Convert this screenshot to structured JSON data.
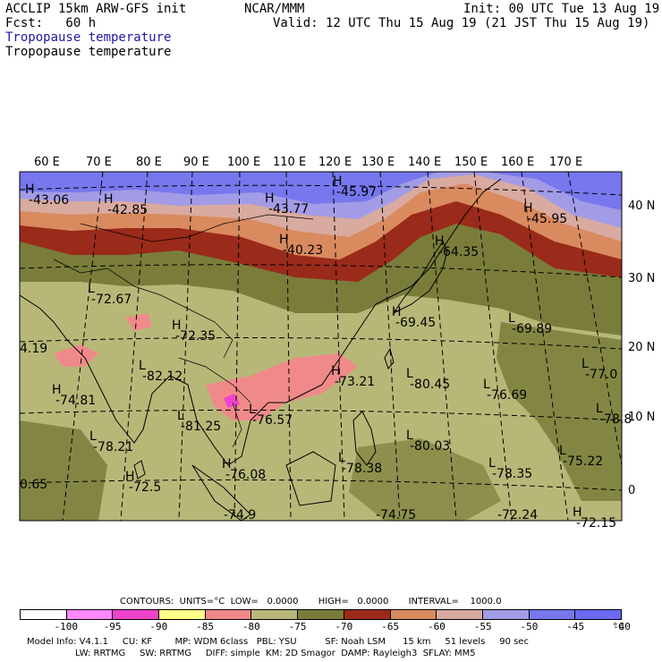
{
  "header": {
    "left1": "ACCLIP 15km ARW-GFS init",
    "left2": "Fcst:   60 h",
    "center1": "NCAR/MMM",
    "right1": "Init: 00 UTC Tue 13 Aug 19",
    "right2": "Valid: 12 UTC Thu 15 Aug 19 (21 JST Thu 15 Aug 19)",
    "field_label_blue": "Tropopause temperature",
    "field_label_black": "Tropopause temperature"
  },
  "map": {
    "lon_labels": [
      "60 E",
      "70 E",
      "80 E",
      "90 E",
      "100 E",
      "110 E",
      "120 E",
      "130 E",
      "140 E",
      "150 E",
      "160 E",
      "170 E"
    ],
    "lat_labels": [
      "40 N",
      "30 N",
      "20 N",
      "10 N",
      "0"
    ],
    "colors": {
      "c_blue": "#7777ee",
      "c_lav": "#a29be6",
      "c_pink": "#d8aaa0",
      "c_orange": "#d98a5e",
      "c_red": "#9a2a1a",
      "c_olive": "#7a7d3a",
      "c_khaki": "#b7b878",
      "c_salmon": "#f08a8a",
      "c_magenta": "#ee44cc"
    },
    "extrema": [
      {
        "m": "H",
        "v": "-43.06"
      },
      {
        "m": "H",
        "v": "-42.85"
      },
      {
        "m": "H",
        "v": "-43.77"
      },
      {
        "m": "H",
        "v": "-45.97"
      },
      {
        "m": "H",
        "v": "-45.95"
      },
      {
        "m": "H",
        "v": "-40.23"
      },
      {
        "m": "H",
        "v": "-64.35"
      },
      {
        "m": "L",
        "v": "-72.67"
      },
      {
        "m": "H",
        "v": "-72.35"
      },
      {
        "m": "H",
        "v": "-69.45"
      },
      {
        "m": "L",
        "v": "-69.89"
      },
      {
        "m": "L",
        "v": "-82.12"
      },
      {
        "m": "H",
        "v": "-73.21"
      },
      {
        "m": "L",
        "v": "-80.45"
      },
      {
        "m": "L",
        "v": "-77.0"
      },
      {
        "m": "H",
        "v": "-74.81"
      },
      {
        "m": "L",
        "v": "-76.57"
      },
      {
        "m": "L",
        "v": "-76.69"
      },
      {
        "m": "L",
        "v": "-78.8"
      },
      {
        "m": "L",
        "v": "-81.25"
      },
      {
        "m": "L",
        "v": "-78.21"
      },
      {
        "m": "L",
        "v": "-80.03"
      },
      {
        "m": "L",
        "v": "-75.22"
      },
      {
        "m": "H",
        "v": "-72.5"
      },
      {
        "m": "H",
        "v": "-76.08"
      },
      {
        "m": "L",
        "v": "-78.38"
      },
      {
        "m": "L",
        "v": "-78.35"
      },
      {
        "m": "H",
        "v": "-72.15"
      },
      {
        "m": "",
        "v": "-74.9"
      },
      {
        "m": "",
        "v": "-74.75"
      },
      {
        "m": "",
        "v": "-72.24"
      },
      {
        "m": "",
        "v": "4.19"
      },
      {
        "m": "",
        "v": "0.65"
      }
    ]
  },
  "contours_line": "CONTOURS:  UNITS=°C  LOW=   0.0000       HIGH=   0.0000       INTERVAL=    1000.0",
  "colorbar": {
    "colors": [
      "#ffffff",
      "#ff88ff",
      "#ee44cc",
      "#ffff88",
      "#f08a8a",
      "#b7b878",
      "#7a7d3a",
      "#9a2a1a",
      "#d98a5e",
      "#d8aaa0",
      "#a29be6",
      "#7777ee",
      "#6a6af0"
    ],
    "ticks": [
      "-100",
      "-95",
      "-90",
      "-85",
      "-80",
      "-75",
      "-70",
      "-65",
      "-60",
      "-55",
      "-50",
      "-45",
      "-40",
      "°C"
    ]
  },
  "model_info": {
    "line1": "Model Info: V4.1.1     CU: KF        MP: WDM 6class   PBL: YSU          SF: Noah LSM      15 km     51 levels     90 sec",
    "line2": "                 LW: RRTMG     SW: RRTMG     DIFF: simple  KM: 2D Smagor  DAMP: Rayleigh3  SFLAY: MM5"
  }
}
